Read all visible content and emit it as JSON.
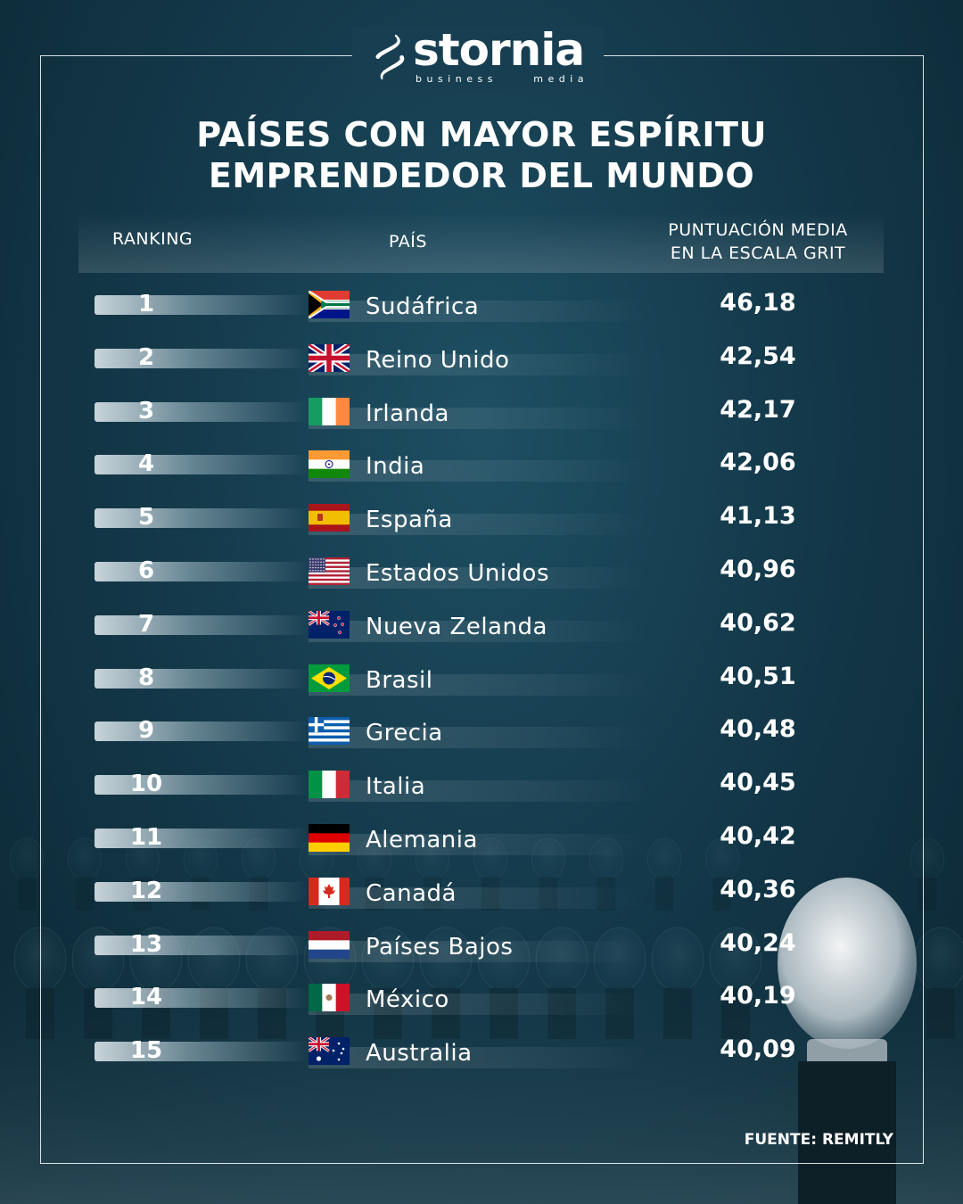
{
  "brand": {
    "name": "stornia",
    "tagline": [
      "business",
      "media"
    ]
  },
  "title_lines": [
    "PAÍSES CON MAYOR ESPÍRITU",
    "EMPRENDEDOR DEL MUNDO"
  ],
  "headers": {
    "rank": "RANKING",
    "country": "PAÍS",
    "score_lines": [
      "PUNTUACIÓN MEDIA",
      "EN LA ESCALA GRIT"
    ]
  },
  "source": "FUENTE: REMITLY",
  "colors": {
    "background": "#143a4b",
    "text": "#ffffff"
  },
  "chart_data": {
    "type": "table",
    "columns": [
      "RANKING",
      "PAÍS",
      "PUNTUACIÓN MEDIA EN LA ESCALA GRIT"
    ],
    "rows": [
      {
        "rank": "1",
        "country": "Sudáfrica",
        "score": "46,18",
        "flag": "south-africa-flag"
      },
      {
        "rank": "2",
        "country": "Reino Unido",
        "score": "42,54",
        "flag": "united-kingdom-flag"
      },
      {
        "rank": "3",
        "country": "Irlanda",
        "score": "42,17",
        "flag": "ireland-flag"
      },
      {
        "rank": "4",
        "country": "India",
        "score": "42,06",
        "flag": "india-flag"
      },
      {
        "rank": "5",
        "country": "España",
        "score": "41,13",
        "flag": "spain-flag"
      },
      {
        "rank": "6",
        "country": "Estados Unidos",
        "score": "40,96",
        "flag": "united-states-flag"
      },
      {
        "rank": "7",
        "country": "Nueva Zelanda",
        "score": "40,62",
        "flag": "new-zealand-flag"
      },
      {
        "rank": "8",
        "country": "Brasil",
        "score": "40,51",
        "flag": "brazil-flag"
      },
      {
        "rank": "9",
        "country": "Grecia",
        "score": "40,48",
        "flag": "greece-flag"
      },
      {
        "rank": "10",
        "country": "Italia",
        "score": "40,45",
        "flag": "italy-flag"
      },
      {
        "rank": "11",
        "country": "Alemania",
        "score": "40,42",
        "flag": "germany-flag"
      },
      {
        "rank": "12",
        "country": "Canadá",
        "score": "40,36",
        "flag": "canada-flag"
      },
      {
        "rank": "13",
        "country": "Países Bajos",
        "score": "40,24",
        "flag": "netherlands-flag"
      },
      {
        "rank": "14",
        "country": "México",
        "score": "40,19",
        "flag": "mexico-flag"
      },
      {
        "rank": "15",
        "country": "Australia",
        "score": "40,09",
        "flag": "australia-flag"
      }
    ]
  }
}
